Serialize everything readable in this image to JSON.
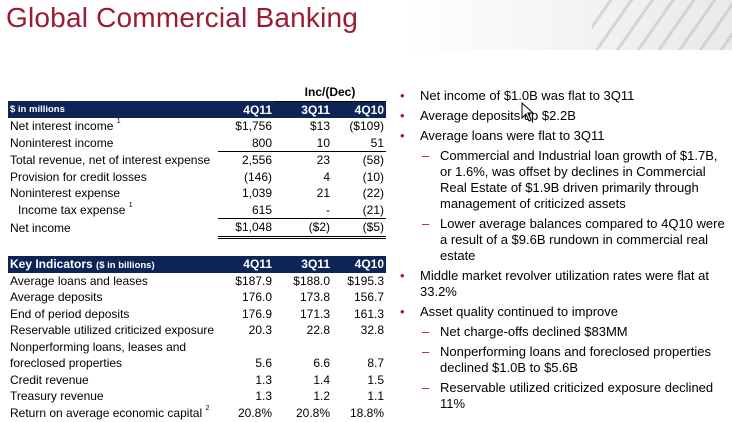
{
  "title": "Global Commercial Banking",
  "table1": {
    "inc_header": "Inc/(Dec)",
    "header": [
      "$ in millions",
      "4Q11",
      "3Q11",
      "4Q10"
    ],
    "rows": [
      {
        "label": "Net interest income",
        "sup": "1",
        "v": [
          "$1,756",
          "$13",
          "($109)"
        ]
      },
      {
        "label": "Noninterest income",
        "sup": "",
        "v": [
          "800",
          "10",
          "51"
        ]
      },
      {
        "label": "Total revenue, net of interest expense",
        "sup": "",
        "v": [
          "2,556",
          "23",
          "(58)"
        ]
      },
      {
        "label": "Provision for credit losses",
        "sup": "",
        "v": [
          "(146)",
          "4",
          "(10)"
        ]
      },
      {
        "label": "Noninterest expense",
        "sup": "",
        "v": [
          "1,039",
          "21",
          "(22)"
        ]
      },
      {
        "label": "Income tax expense",
        "sup": "1",
        "v": [
          "615",
          "-",
          "(21)"
        ]
      },
      {
        "label": "Net income",
        "sup": "",
        "v": [
          "$1,048",
          "($2)",
          "($5)"
        ]
      }
    ]
  },
  "table2": {
    "header_title": "Key Indicators",
    "header_units": "($ in billions)",
    "header_cols": [
      "4Q11",
      "3Q11",
      "4Q10"
    ],
    "rows": [
      {
        "label": "Average loans and leases",
        "v": [
          "$187.9",
          "$188.0",
          "$195.3"
        ]
      },
      {
        "label": "Average deposits",
        "v": [
          "176.0",
          "173.8",
          "156.7"
        ]
      },
      {
        "label": "End of period deposits",
        "v": [
          "176.9",
          "171.3",
          "161.3"
        ]
      },
      {
        "label": "Reservable utilized criticized exposure",
        "v": [
          "20.3",
          "22.8",
          "32.8"
        ]
      },
      {
        "label": "Nonperforming loans, leases and",
        "v": [
          "",
          "",
          ""
        ]
      },
      {
        "label": "foreclosed properties",
        "v": [
          "5.6",
          "6.6",
          "8.7"
        ]
      },
      {
        "label": "Credit revenue",
        "v": [
          "1.3",
          "1.4",
          "1.5"
        ]
      },
      {
        "label": "Treasury revenue",
        "v": [
          "1.3",
          "1.2",
          "1.1"
        ]
      },
      {
        "label": "Return on average economic capital",
        "sup": "2",
        "v": [
          "20.8%",
          "20.8%",
          "18.8%"
        ]
      }
    ]
  },
  "bullets": [
    {
      "level": 1,
      "text": "Net income of $1.0B was flat to 3Q11"
    },
    {
      "level": 1,
      "text": "Average deposits up $2.2B"
    },
    {
      "level": 1,
      "text": "Average loans were flat to 3Q11"
    },
    {
      "level": 2,
      "text": "Commercial and Industrial loan growth of $1.7B, or 1.6%, was offset by declines in Commercial Real Estate of $1.9B driven primarily through management of criticized assets"
    },
    {
      "level": 2,
      "text": "Lower average balances compared to 4Q10 were a result of a $9.6B rundown in commercial real estate"
    },
    {
      "level": 1,
      "text": "Middle market revolver utilization rates were flat at 33.2%"
    },
    {
      "level": 1,
      "text": "Asset quality continued to improve"
    },
    {
      "level": 2,
      "text": "Net charge-offs declined $83MM"
    },
    {
      "level": 2,
      "text": "Nonperforming loans and foreclosed properties declined $1.0B to $5.6B"
    },
    {
      "level": 2,
      "text": "Reservable utilized criticized exposure declined 11%"
    }
  ],
  "colors": {
    "title": "#9b1b30",
    "header_bg": "#0d2457",
    "bullet": "#9b1b30"
  },
  "icons": {
    "cursor": "mouse-pointer-icon"
  }
}
